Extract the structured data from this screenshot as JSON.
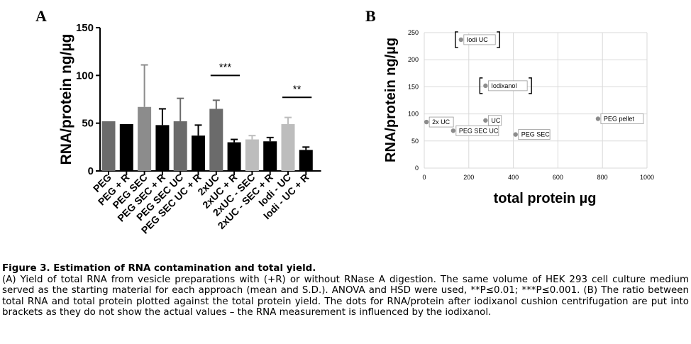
{
  "panel_a_label": "A",
  "panel_b_label": "B",
  "chart_data": [
    {
      "type": "bar",
      "panel": "A",
      "ylabel": "RNA/protein ng/µg",
      "xlabel": "",
      "ylim": [
        0,
        150
      ],
      "yticks": [
        "0",
        "50",
        "100",
        "150"
      ],
      "categories": [
        "PEG",
        "PEG + R",
        "PEG SEC",
        "PEG SEC + R",
        "PEG SEC UC",
        "PEG SEC UC + R",
        "2xUC",
        "2xUC + R",
        "2xUC - SEC",
        "2xUC - SEC + R",
        "Iodi - UC",
        "Iodi - UC + R"
      ],
      "values": [
        52,
        49,
        67,
        48,
        52,
        37,
        65,
        30,
        33,
        31,
        49,
        22
      ],
      "error": [
        0,
        0,
        44,
        17,
        24,
        11,
        9,
        3,
        4,
        4,
        7,
        3
      ],
      "colors": [
        "#6b6b6b",
        "#000000",
        "#8c8c8c",
        "#000000",
        "#6b6b6b",
        "#000000",
        "#6b6b6b",
        "#000000",
        "#bdbdbd",
        "#000000",
        "#bdbdbd",
        "#000000"
      ],
      "annotations": [
        {
          "text": "***",
          "from": 6,
          "to": 7,
          "y": 100
        },
        {
          "text": "**",
          "from": 10,
          "to": 11,
          "y": 77
        }
      ]
    },
    {
      "type": "scatter",
      "panel": "B",
      "ylabel": "RNA/protein ng/µg",
      "xlabel": "total protein µg",
      "xlim": [
        0,
        1000
      ],
      "ylim": [
        0,
        250
      ],
      "xticks": [
        "0",
        "200",
        "400",
        "600",
        "800",
        "1000"
      ],
      "yticks": [
        "0",
        "50",
        "100",
        "150",
        "200",
        "250"
      ],
      "grid": true,
      "point_color": "#8c8c8c",
      "points": [
        {
          "label": "Iodi UC",
          "x": 165,
          "y": 237,
          "bracketed": true
        },
        {
          "label": "Iodixanol",
          "x": 275,
          "y": 152,
          "bracketed": true
        },
        {
          "label": "2x UC",
          "x": 10,
          "y": 85,
          "bracketed": false
        },
        {
          "label": "UC",
          "x": 275,
          "y": 88,
          "bracketed": false
        },
        {
          "label": "PEG SEC UC",
          "x": 130,
          "y": 69,
          "bracketed": false
        },
        {
          "label": "PEG SEC",
          "x": 410,
          "y": 62,
          "bracketed": false
        },
        {
          "label": "PEG pellet",
          "x": 780,
          "y": 91,
          "bracketed": false
        }
      ]
    }
  ],
  "caption": {
    "title": "Figure 3. Estimation of RNA contamination and total yield.",
    "body": "(A) Yield of total RNA from vesicle preparations with (+R) or without RNase A digestion. The same volume of HEK 293 cell culture medium served as the starting material for each approach (mean and S.D.). ANOVA and HSD were used, **P≤0.01; ***P≤0.001. (B) The ratio between total RNA and total protein plotted against the total protein yield. The dots for RNA/protein after iodixanol cushion centrifugation are put into brackets as they do not show the actual values – the RNA measurement is influenced by the iodixanol."
  }
}
